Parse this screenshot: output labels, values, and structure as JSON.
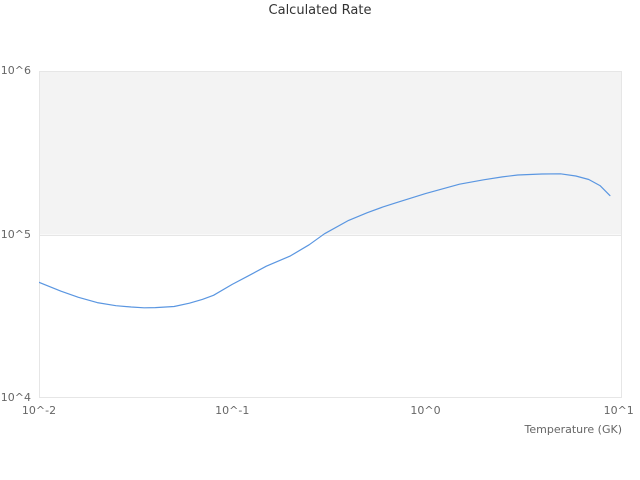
{
  "title": "Calculated Rate",
  "colors": {
    "line": "#5a96e1",
    "band_fill": "#f3f3f3",
    "grid_line": "#e6e6e6",
    "plot_border": "#e6e6e6",
    "title_text": "#333333",
    "tick_text": "#666666"
  },
  "chart_data": {
    "type": "line",
    "title": "Calculated Rate",
    "xlabel": "Temperature (GK)",
    "ylabel": "",
    "x_scale": "log",
    "y_scale": "log",
    "xlim": [
      0.01,
      10.4
    ],
    "ylim": [
      10000,
      1000000
    ],
    "grid": "horizontal-only",
    "legend": "none",
    "alternate_band": {
      "from": 100000,
      "to": 1000000
    },
    "x_ticks": [
      {
        "value": 0.01,
        "label": "10^-2"
      },
      {
        "value": 0.1,
        "label": "10^-1"
      },
      {
        "value": 1,
        "label": "10^0"
      },
      {
        "value": 10,
        "label": "10^1"
      }
    ],
    "y_ticks": [
      {
        "value": 10000,
        "label": "10^4"
      },
      {
        "value": 100000,
        "label": "10^5"
      },
      {
        "value": 1000000,
        "label": "10^6"
      }
    ],
    "series": [
      {
        "name": "Calculated Rate",
        "points": [
          [
            0.01,
            51000
          ],
          [
            0.013,
            45000
          ],
          [
            0.016,
            41300
          ],
          [
            0.02,
            38300
          ],
          [
            0.025,
            36700
          ],
          [
            0.03,
            36000
          ],
          [
            0.035,
            35600
          ],
          [
            0.04,
            35700
          ],
          [
            0.05,
            36300
          ],
          [
            0.06,
            38000
          ],
          [
            0.07,
            40100
          ],
          [
            0.08,
            42500
          ],
          [
            0.1,
            49500
          ],
          [
            0.12,
            55500
          ],
          [
            0.15,
            64000
          ],
          [
            0.2,
            74000
          ],
          [
            0.25,
            86500
          ],
          [
            0.3,
            101000
          ],
          [
            0.4,
            122000
          ],
          [
            0.5,
            136000
          ],
          [
            0.6,
            147000
          ],
          [
            0.7,
            156000
          ],
          [
            0.8,
            164000
          ],
          [
            1.0,
            178000
          ],
          [
            1.5,
            203000
          ],
          [
            2.0,
            216000
          ],
          [
            2.5,
            225000
          ],
          [
            3.0,
            231000
          ],
          [
            4.0,
            234500
          ],
          [
            5.0,
            235000
          ],
          [
            6.0,
            228000
          ],
          [
            7.0,
            217000
          ],
          [
            8.0,
            199000
          ],
          [
            9.0,
            173000
          ]
        ]
      }
    ]
  }
}
